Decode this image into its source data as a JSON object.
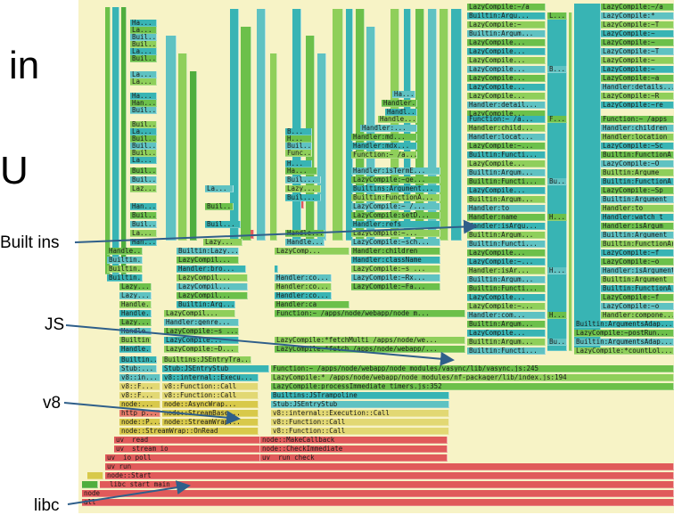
{
  "slide": {
    "side_text_1": "in",
    "side_text_2": "U",
    "labels": {
      "builtins": "Built ins",
      "js": "JS",
      "v8": "v8",
      "libc": "libc"
    }
  },
  "flamegraph": {
    "bottom": {
      "all": "all",
      "node": "node",
      "libc_start_main": "__libc_start_main",
      "node_start": "node::Start",
      "uv_run": "uv_run",
      "uv_io_poll": "uv__io_poll",
      "uv_run_check": "uv__run_check",
      "uv_stream_io": "uv__stream_io",
      "check_immediate": "node::CheckImmediate",
      "uv_read": "uv__read",
      "make_callback": "node::MakeCallback",
      "http_p": "http_p...",
      "on_read": "node::StreamWrap::OnRead",
      "v8_function_call": "v8::Function::Call",
      "v8_execution_call": "v8::internal::Execution::Call",
      "node_p": "node::P...",
      "stream_wrap_short": "node::StreamWrap...",
      "stream_base": "node::StreamBase...",
      "builtins_js_trampoline": "Builtins:JSTrampoline",
      "stub_js_entry": "Stub:JSEntryStub",
      "node_async_wrap": "node::AsyncWrap...",
      "node_short": "node:...",
      "v8_f": "v8::F...",
      "v8_function_call_2": "v8::Function::Call",
      "process_immediate": "LazyCompile:processImmediate timers.js:352",
      "v8_in": "v8::in...",
      "v8_internal_exec_short": "v8::internal::Execu...",
      "nf_packager": "LazyCompile:* /apps/node/webapp/node_modules/nf-packager/lib/index.js:194",
      "stub": "Stub:...",
      "stub_js_entry_2": "Stub:JSEntryStub",
      "vasync": "Function:~ /apps/node/webapp/node_modules/vasync/lib/vasync.js:245",
      "builtin_dot": "Builtin...",
      "builtins_js_entry_tramp": "Builtins:JSEntryTra...",
      "fetch_webapp": "LazyCompile:*fetch /apps/node/webapp/...",
      "fetch_multi": "LazyCompile:*fetchMulti /apps/node/we...",
      "function_node_m": "Function:~ /apps/node/webapp/node_m..."
    },
    "upper": {
      "lazy_compile_count": "LazyCompile:*countLol...",
      "builtins_args_adap": "Builtin:ArgumentsAdap...",
      "lazy_compile_post_run": "LazyCompile:~postRun...",
      "handler_compone": "Handler:compone...",
      "handler_ca": "Handler:ca",
      "handler_genre": "Handler:genre...",
      "handler_co": "Handler:co...",
      "lazy_compile_rx": "LazyCompile:~Rx...",
      "lazy_compile_fa": "LazyCompile:~Fa...",
      "builtin_arg": "Builtin:Arg...",
      "lazy_compil": "LazyCompil...",
      "handler_bro": "Handler:bro...",
      "handler_children": "Handler:children",
      "handler_classname": "Handler:className",
      "lazy_compile_s": "LazyCompile:~s ...",
      "lazy_comp": "LazyComp...",
      "handler_refs": "Handler:refs",
      "lazy_compile_sch": "LazyCompile:~sch...",
      "lazy_compile_setd": "LazyCompile:setD...",
      "builtins_argument": "Builtins:Argument...",
      "builtin_function_a": "Builtin:FunctionA...",
      "handler_isterme": "Handler:isTermE...",
      "lazy_compile_ge": "LazyCompile:~ge...",
      "function_a": "Function:~ /a...",
      "handler_md": "Handler:md...",
      "handler_mdx": "Handler:mdx...",
      "handle": "Handle...",
      "handl": "Handl...",
      "handler_short": "Handler:...",
      "ha": "Ha...",
      "handler_name": "Handler:name",
      "handler_to": "Handler:to",
      "handler_isargu": "Handler:isArgu...",
      "builtin_functi": "Builtin:Functi...",
      "builtin_argum": "Builtin:Argum...",
      "handler_ar": "Handler:isAr...",
      "handler_com": "Handler:com...",
      "handler_locat": "Handler:locat...",
      "handler_child": "Handler:child...",
      "handler_detail": "Handler:detail...",
      "lazy_compile_dot": "LazyCompile...",
      "builtin_argu": "Builtin:Argu...",
      "right_function_apps": "Function:~ /apps",
      "right_handler_children": "Handler:children",
      "right_handler_location": "Handler:location",
      "right_builtin_function_a": "Builtin:FunctionA",
      "right_lazy_compile_o": "LazyCompile:~O",
      "right_lazy_compile_s": "LazyCompile:~S",
      "right_lazy_compile_sp": "LazyCompile:~Sp",
      "right_handler_to": "Handler:to",
      "right_handler_watch": "Handler:watch_t",
      "right_handler_isargum": "Handler:isArgum",
      "right_builtin_functionar": "Builtin:FunctionAr",
      "right_lazy_compile_f": "LazyCompile:~f",
      "right_lazy_compile_o2": "LazyCompile:~o",
      "right_builtin_argument": "Builtin:Argument",
      "right_handler_isargument": "Handler:isArgument",
      "right_handler_details": "Handler:details...",
      "right_lazy_compile_r": "LazyCompile:~R",
      "right_lazy_compile_re": "LazyCompile:~re",
      "right_builtin_argume": "Builtin:Argume",
      "right_lazy_compile_sc": "LazyCompile:~Sc",
      "right_lazy_compile_t": "LazyCompile:~T",
      "right_lazy_compile_a": "LazyCompile:~a"
    }
  }
}
